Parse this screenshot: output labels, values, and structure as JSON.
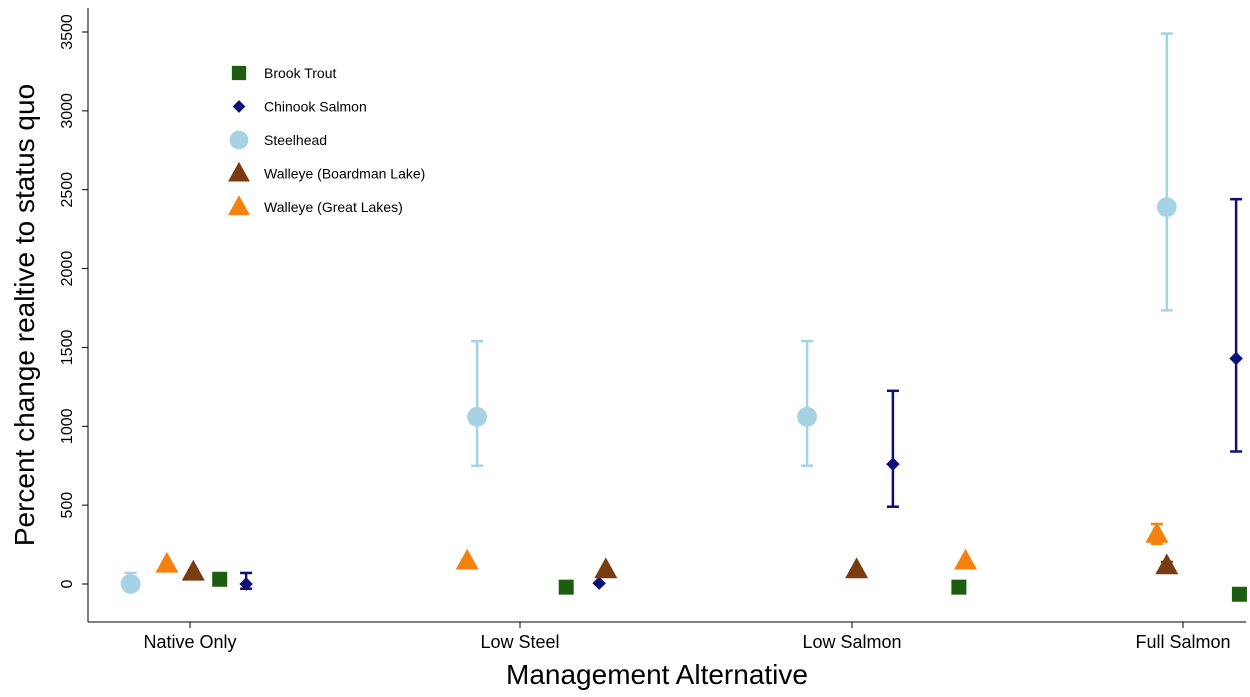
{
  "chart_data": {
    "type": "scatter",
    "title": "",
    "xlabel": "Management Alternative",
    "ylabel": "Percent change realtive to status quo",
    "categories": [
      "Native Only",
      "Low Steel",
      "Low Salmon",
      "Full Salmon"
    ],
    "ylim": [
      -250,
      3650
    ],
    "yticks": [
      0,
      500,
      1000,
      1500,
      2000,
      2500,
      3000,
      3500
    ],
    "grid": false,
    "legend_position": "top-left",
    "series": [
      {
        "name": "Brook Trout",
        "color": "#1b5e0f",
        "marker": "square",
        "points": [
          {
            "x": 0.09,
            "y": 30
          },
          {
            "x": 1.14,
            "y": -20
          },
          {
            "x": 2.33,
            "y": -20
          },
          {
            "x": 3.18,
            "y": -65
          }
        ]
      },
      {
        "name": "Chinook Salmon",
        "color": "#0f0f78",
        "marker": "diamond",
        "points": [
          {
            "x": 0.17,
            "y": 0,
            "low": -30,
            "high": 70
          },
          {
            "x": 1.24,
            "y": 5
          },
          {
            "x": 2.13,
            "y": 760,
            "low": 490,
            "high": 1225
          },
          {
            "x": 3.17,
            "y": 1430,
            "low": 840,
            "high": 2440
          }
        ]
      },
      {
        "name": "Steelhead",
        "color": "#a6d3e3",
        "marker": "circle",
        "points": [
          {
            "x": -0.18,
            "y": 0,
            "low": -30,
            "high": 70
          },
          {
            "x": 0.87,
            "y": 1060,
            "low": 750,
            "high": 1540
          },
          {
            "x": 1.87,
            "y": 1060,
            "low": 750,
            "high": 1540
          },
          {
            "x": 2.96,
            "y": 2390,
            "low": 1735,
            "high": 3490
          }
        ]
      },
      {
        "name": "Walleye (Boardman Lake)",
        "color": "#7a3b10",
        "marker": "triangle",
        "points": [
          {
            "x": 0.01,
            "y": 75
          },
          {
            "x": 1.26,
            "y": 90
          },
          {
            "x": 2.02,
            "y": 90
          },
          {
            "x": 2.96,
            "y": 115,
            "low": 95,
            "high": 140
          }
        ]
      },
      {
        "name": "Walleye (Great Lakes)",
        "color": "#f5820f",
        "marker": "triangle",
        "points": [
          {
            "x": -0.07,
            "y": 125
          },
          {
            "x": 0.84,
            "y": 145
          },
          {
            "x": 2.35,
            "y": 145
          },
          {
            "x": 2.93,
            "y": 315,
            "low": 255,
            "high": 380
          }
        ]
      }
    ]
  }
}
